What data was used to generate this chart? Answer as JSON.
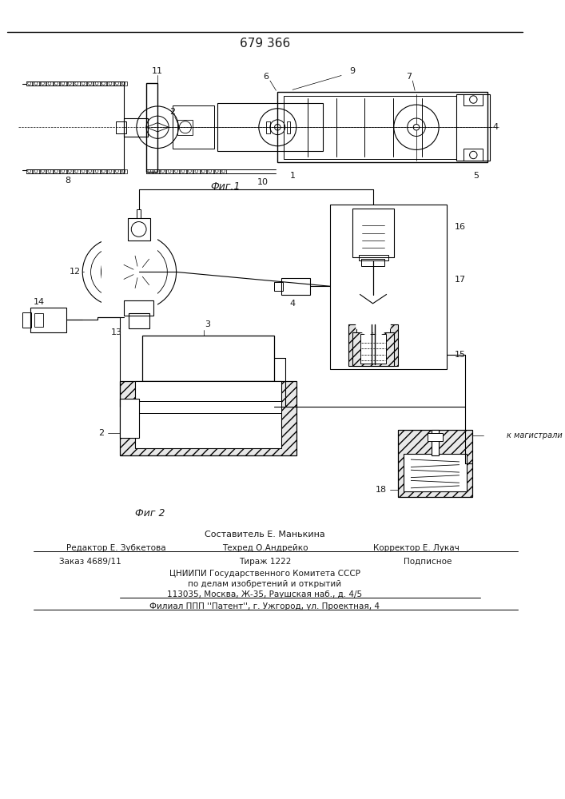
{
  "patent_number": "679 366",
  "fig1_label": "Фиг.1",
  "fig2_label": "Фиг 2",
  "footer_line1": "Составитель Е. Манькина",
  "footer_line2a": "Редактор Е. Зубкетова",
  "footer_line2b": "Техред О.Андрейко",
  "footer_line2c": "Корректор Е. Лукач",
  "footer_line3a": "Заказ 4689/11",
  "footer_line3b": "Тираж 1222",
  "footer_line3c": "Подписное",
  "footer_line4": "ЦНИИПИ Государственного Комитета СССР",
  "footer_line5": "по делам изобретений и открытий",
  "footer_line6": "113035, Москва, Ж-35, Раушская наб., д. 4/5",
  "footer_line7": "Филиал ППП ''Патент'', г. Ужгород, ул. Проектная, 4",
  "k_magistrali": "к магистрали",
  "bg_color": "#ffffff",
  "line_color": "#000000",
  "text_color": "#1a1a1a"
}
